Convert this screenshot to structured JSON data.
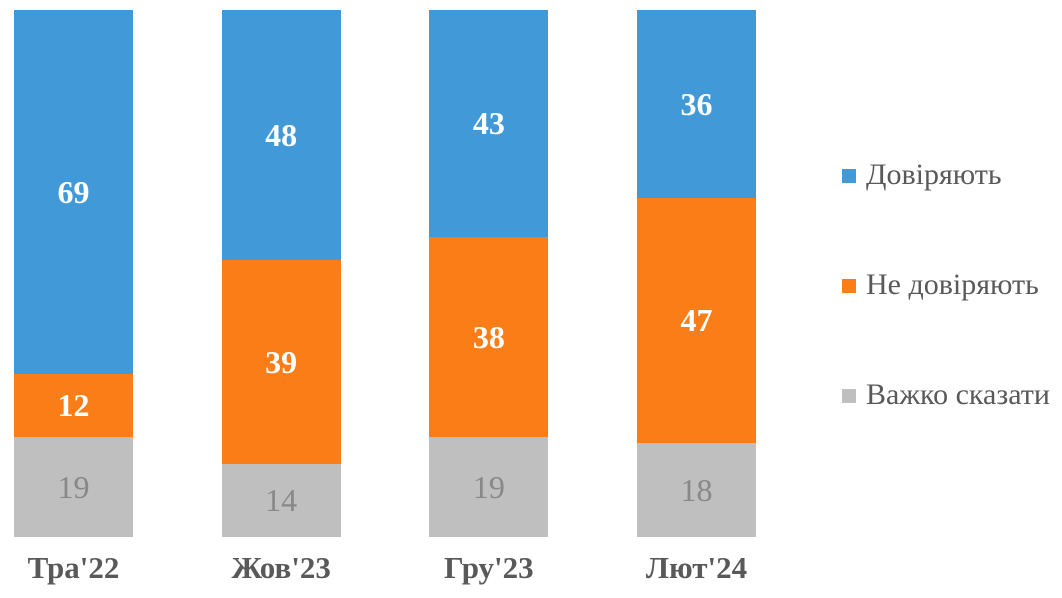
{
  "chart_data": {
    "type": "bar",
    "variant": "stacked-column",
    "title": "",
    "xlabel": "",
    "ylabel": "",
    "categories": [
      "Тра'22",
      "Жов'23",
      "Гру'23",
      "Лют'24"
    ],
    "series": [
      {
        "name": "Довіряють",
        "color": "#4199D8",
        "values": [
          69,
          48,
          43,
          36
        ]
      },
      {
        "name": "Не довіряють",
        "color": "#FA7D17",
        "values": [
          12,
          39,
          38,
          47
        ]
      },
      {
        "name": "Важко сказати",
        "color": "#BFBFBF",
        "values": [
          19,
          14,
          19,
          18
        ]
      }
    ],
    "ylim": [
      0,
      100
    ],
    "grid": false,
    "legend_position": "right",
    "value_labels_position": "center"
  },
  "colors": {
    "value_label_on_color": "#FFFFFF",
    "value_label_on_gray": "#888888",
    "axis_and_legend_text": "#595959",
    "background": "#FFFFFF"
  }
}
